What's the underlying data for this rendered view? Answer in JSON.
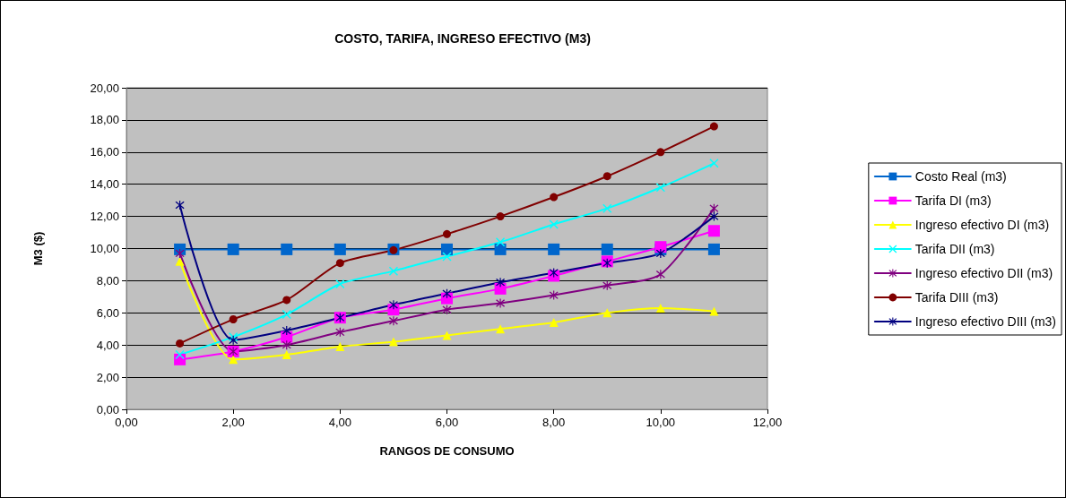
{
  "chart_data": {
    "type": "line",
    "title": "COSTO, TARIFA, INGRESO EFECTIVO (M3)",
    "xlabel": "RANGOS DE CONSUMO",
    "ylabel": "M3 ($)",
    "x": [
      1,
      2,
      3,
      4,
      5,
      6,
      7,
      8,
      9,
      10,
      11
    ],
    "xlim": [
      0,
      12
    ],
    "xticks": [
      {
        "value": 0,
        "label": "0,00"
      },
      {
        "value": 2,
        "label": "2,00"
      },
      {
        "value": 4,
        "label": "4,00"
      },
      {
        "value": 6,
        "label": "6,00"
      },
      {
        "value": 8,
        "label": "8,00"
      },
      {
        "value": 10,
        "label": "10,00"
      },
      {
        "value": 12,
        "label": "12,00"
      }
    ],
    "ylim": [
      0,
      20
    ],
    "yticks": [
      {
        "value": 0,
        "label": "0,00"
      },
      {
        "value": 2,
        "label": "2,00"
      },
      {
        "value": 4,
        "label": "4,00"
      },
      {
        "value": 6,
        "label": "6,00"
      },
      {
        "value": 8,
        "label": "8,00"
      },
      {
        "value": 10,
        "label": "10,00"
      },
      {
        "value": 12,
        "label": "12,00"
      },
      {
        "value": 14,
        "label": "14,00"
      },
      {
        "value": 16,
        "label": "16,00"
      },
      {
        "value": 18,
        "label": "18,00"
      },
      {
        "value": 20,
        "label": "20,00"
      }
    ],
    "grid": "y",
    "legend": "right",
    "series": [
      {
        "name": "Costo Real (m3)",
        "color": "#0066cc",
        "marker": "square",
        "values": [
          9.95,
          9.95,
          9.95,
          9.95,
          9.95,
          9.95,
          9.95,
          9.95,
          9.95,
          9.95,
          9.95
        ]
      },
      {
        "name": "Tarifa DI (m3)",
        "color": "#ff00ff",
        "marker": "square",
        "values": [
          3.1,
          3.6,
          4.5,
          5.7,
          6.2,
          6.9,
          7.5,
          8.3,
          9.2,
          10.1,
          11.1
        ]
      },
      {
        "name": "Ingreso efectivo DI (m3)",
        "color": "#ffff00",
        "marker": "triangle",
        "values": [
          9.2,
          3.1,
          3.4,
          3.9,
          4.2,
          4.6,
          5.0,
          5.4,
          6.0,
          6.3,
          6.1
        ]
      },
      {
        "name": "Tarifa DII (m3)",
        "color": "#00ffff",
        "marker": "cross",
        "values": [
          3.4,
          4.5,
          5.9,
          7.8,
          8.6,
          9.5,
          10.4,
          11.5,
          12.5,
          13.8,
          15.3
        ]
      },
      {
        "name": "Ingreso efectivo DII (m3)",
        "color": "#800080",
        "marker": "star",
        "values": [
          9.7,
          3.6,
          4.0,
          4.8,
          5.5,
          6.2,
          6.6,
          7.1,
          7.7,
          8.4,
          12.5
        ]
      },
      {
        "name": "Tarifa DIII (m3)",
        "color": "#800000",
        "marker": "circle",
        "values": [
          4.1,
          5.6,
          6.8,
          9.1,
          9.9,
          10.9,
          12.0,
          13.2,
          14.5,
          16.0,
          17.6
        ]
      },
      {
        "name": "Ingreso efectivo DIII (m3)",
        "color": "#000080",
        "marker": "star",
        "values": [
          12.7,
          4.3,
          4.9,
          5.7,
          6.5,
          7.2,
          7.9,
          8.5,
          9.1,
          9.7,
          12.0
        ]
      }
    ]
  }
}
